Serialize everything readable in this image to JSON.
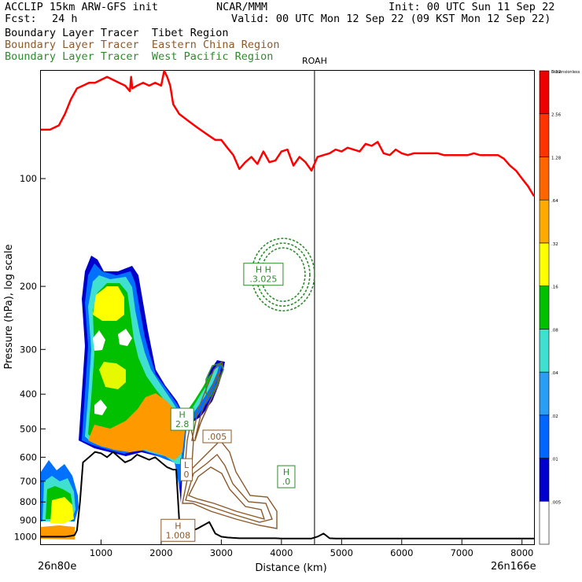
{
  "header": {
    "model": "ACCLIP 15km ARW-GFS init",
    "org": "NCAR/MMM",
    "init": "Init: 00 UTC Sun 11 Sep 22",
    "fcst_label": "Fcst:",
    "fcst_value": "24 h",
    "valid": "Valid: 00 UTC Mon 12 Sep 22 (09 KST Mon 12 Sep 22)"
  },
  "legend": [
    {
      "text": "Boundary Layer Tracer  Tibet Region",
      "color": "#000000"
    },
    {
      "text": "Boundary Layer Tracer  Eastern China Region",
      "color": "#8B5A2B"
    },
    {
      "text": "Boundary Layer Tracer  West Pacific Region",
      "color": "#2E8B2E"
    }
  ],
  "chart_data": {
    "type": "cross-section",
    "xlabel": "Distance (km)",
    "ylabel": "Pressure (hPa), log scale",
    "xlim": [
      0,
      8200
    ],
    "ylim": [
      1050,
      50
    ],
    "x_ticks": [
      1000,
      2000,
      3000,
      4000,
      5000,
      6000,
      7000,
      8000
    ],
    "y_ticks": [
      100,
      200,
      300,
      400,
      500,
      600,
      700,
      800,
      900,
      1000
    ],
    "left_end_label": "26n80e",
    "right_end_label": "26n166e",
    "station_marker": {
      "label": "ROAH",
      "x": 4550
    },
    "tropopause_line": {
      "color": "#ff0000",
      "x": [
        0,
        150,
        300,
        400,
        500,
        600,
        700,
        800,
        900,
        1000,
        1100,
        1200,
        1300,
        1400,
        1480,
        1500,
        1520,
        1600,
        1700,
        1800,
        1900,
        2000,
        2050,
        2100,
        2150,
        2200,
        2300,
        2400,
        2500,
        2600,
        2700,
        2800,
        2900,
        3000,
        3100,
        3200,
        3300,
        3400,
        3500,
        3600,
        3700,
        3800,
        3900,
        4000,
        4100,
        4200,
        4300,
        4400,
        4500,
        4600,
        4700,
        4800,
        4900,
        5000,
        5100,
        5200,
        5300,
        5400,
        5500,
        5600,
        5700,
        5800,
        5900,
        6000,
        6100,
        6200,
        6300,
        6400,
        6500,
        6600,
        6700,
        6800,
        6900,
        7000,
        7100,
        7200,
        7300,
        7400,
        7500,
        7600,
        7700,
        7800,
        7900,
        8000,
        8100,
        8200
      ],
      "p": [
        73,
        73,
        71,
        66,
        60,
        56,
        55,
        54,
        54,
        53,
        52,
        53,
        54,
        55,
        57,
        52,
        56,
        55,
        54,
        55,
        54,
        55,
        50,
        52,
        55,
        62,
        66,
        68,
        70,
        72,
        74,
        76,
        78,
        78,
        82,
        86,
        94,
        90,
        87,
        91,
        84,
        90,
        89,
        84,
        83,
        92,
        87,
        90,
        95,
        87,
        86,
        85,
        83,
        84,
        82,
        83,
        84,
        80,
        81,
        79,
        85,
        86,
        83,
        85,
        86,
        85,
        85,
        85,
        85,
        85,
        86,
        86,
        86,
        86,
        86,
        85,
        86,
        86,
        86,
        86,
        88,
        92,
        95,
        100,
        105,
        112
      ]
    },
    "terrain_line": {
      "color": "#000000",
      "x": [
        0,
        100,
        200,
        300,
        400,
        500,
        560,
        600,
        650,
        700,
        800,
        900,
        1000,
        1100,
        1200,
        1300,
        1400,
        1500,
        1600,
        1700,
        1800,
        1900,
        2000,
        2100,
        2200,
        2250,
        2300,
        2350,
        2400,
        2500,
        2600,
        2700,
        2800,
        2900,
        3000,
        3100,
        3200,
        3300,
        3400,
        3500,
        3600,
        3700,
        3800,
        3900,
        4000,
        4500,
        4600,
        4700,
        4800,
        4900,
        5000,
        5500,
        6000,
        6500,
        7000,
        7500,
        8000,
        8200
      ],
      "p": [
        1000,
        1000,
        1000,
        1000,
        1000,
        995,
        990,
        960,
        800,
        620,
        600,
        580,
        585,
        600,
        580,
        600,
        620,
        610,
        590,
        600,
        610,
        600,
        620,
        640,
        650,
        650,
        900,
        960,
        980,
        965,
        950,
        930,
        910,
        980,
        1000,
        1005,
        1008,
        1010,
        1010,
        1010,
        1010,
        1010,
        1010,
        1010,
        1012,
        1012,
        1000,
        980,
        1010,
        1012,
        1012,
        1012,
        1012,
        1012,
        1012,
        1012,
        1012,
        1012
      ]
    },
    "contour_labels": [
      {
        "text": "H",
        "sub": "2.8",
        "color": "#2E8B2E",
        "x": 2350,
        "p": 470
      },
      {
        "text": "L",
        "sub": "0",
        "color": "#8B5A2B",
        "x": 2420,
        "p": 650
      },
      {
        "text": ".005",
        "color": "#8B5A2B",
        "x": 2930,
        "p": 525
      },
      {
        "text": "H",
        "sub": ".0",
        "color": "#2E8B2E",
        "x": 4080,
        "p": 680
      },
      {
        "text": "H",
        "sub": "1.008",
        "color": "#8B5A2B",
        "x": 2280,
        "p": 960
      },
      {
        "text": "H H",
        "sub": ".3.025",
        "color": "#2E8B2E",
        "x": 3700,
        "p": 185
      }
    ],
    "colorbar": {
      "levels": [
        ".005",
        ".01",
        ".02",
        ".04",
        ".08",
        ".16",
        ".32",
        ".64",
        "1.28",
        "2.56",
        "5.12"
      ],
      "top_label": "Dimensionless",
      "colors": [
        "#ffffff",
        "#0000cc",
        "#0066ff",
        "#2a9df4",
        "#40e0d0",
        "#00c000",
        "#ffff00",
        "#ffaa00",
        "#ff6600",
        "#ff3300",
        "#ee0000"
      ]
    }
  }
}
